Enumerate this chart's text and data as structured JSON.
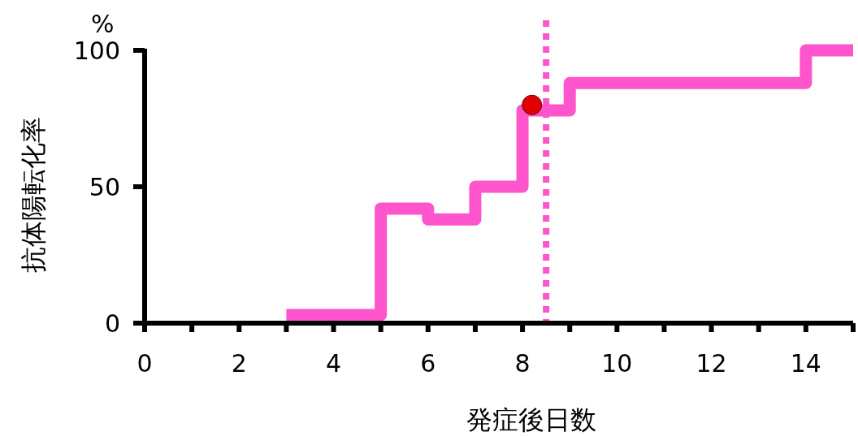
{
  "chart_data": {
    "type": "step",
    "xlabel": "発症後日数",
    "ylabel": "抗体陽転化率",
    "annotations": [
      "%"
    ],
    "xlim": [
      0,
      15
    ],
    "ylim": [
      0,
      100
    ],
    "xticks": [
      0,
      {
        "value": 1,
        "label": null
      },
      2,
      {
        "value": 3,
        "label": null
      },
      4,
      {
        "value": 5,
        "label": null
      },
      6,
      {
        "value": 7,
        "label": null
      },
      8,
      {
        "value": 9,
        "label": null
      },
      10,
      {
        "value": 11,
        "label": null
      },
      12,
      {
        "value": 13,
        "label": null
      },
      14,
      {
        "value": 15,
        "label": null
      }
    ],
    "yticks": [
      0,
      50,
      100
    ],
    "series": [
      {
        "color": "#ff55cc",
        "line_style": "solid",
        "x": [
          3,
          5,
          6,
          7,
          8,
          9,
          14,
          15
        ],
        "values": [
          3,
          42,
          38,
          50,
          78,
          88,
          100,
          100
        ]
      },
      {
        "type": "scatter",
        "color": "#e00000",
        "marker": "circle",
        "x": [
          8.2
        ],
        "values": [
          80
        ]
      }
    ],
    "ref_lines": [
      {
        "axis": "x",
        "value": 8.5,
        "color": "#ff55cc",
        "line_style": "dotted"
      }
    ]
  }
}
